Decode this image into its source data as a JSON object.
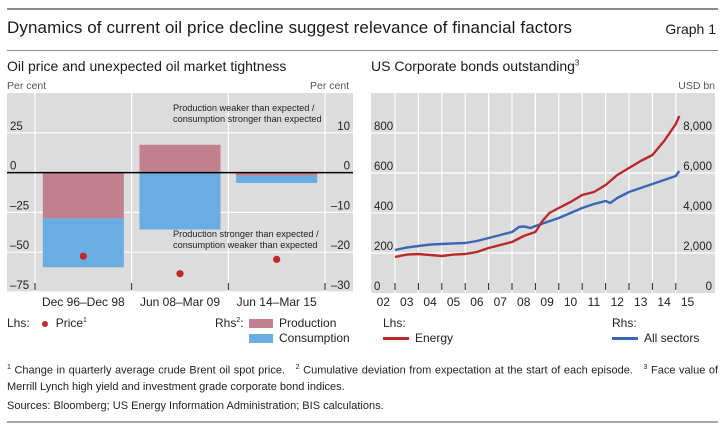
{
  "header": {
    "title": "Dynamics of current oil price decline suggest relevance of financial factors",
    "graph_label": "Graph 1"
  },
  "colors": {
    "plot_bg": "#dcdcdc",
    "grid": "#ffffff",
    "production": "#c27f8f",
    "consumption": "#6aade2",
    "price_dot": "#c0282a",
    "energy": "#b82a2a",
    "all_sectors": "#3a66b4",
    "zero_line": "#000000"
  },
  "chart_data": [
    {
      "type": "bar",
      "title": "Oil price and unexpected oil market tightness",
      "ylabel_left": "Per cent",
      "ylabel_right": "Per cent",
      "categories": [
        "Dec 96–Dec 98",
        "Jun 08–Mar 09",
        "Jun 14–Mar 15"
      ],
      "left_axis": {
        "range": [
          -75,
          50
        ],
        "ticks": [
          "25",
          "0",
          "–25",
          "–50",
          "–75"
        ],
        "tick_values": [
          25,
          0,
          -25,
          -50,
          -75
        ]
      },
      "right_axis": {
        "range": [
          -30,
          20
        ],
        "ticks": [
          "10",
          "0",
          "–10",
          "–20",
          "–30"
        ],
        "tick_values": [
          10,
          0,
          -10,
          -20,
          -30
        ]
      },
      "stacked": true,
      "series": [
        {
          "name": "Production",
          "axis": "right",
          "kind": "bar",
          "values": [
            -11.5,
            7.0,
            -0.8
          ]
        },
        {
          "name": "Consumption",
          "axis": "right",
          "kind": "bar",
          "values": [
            -12.3,
            -14.3,
            -1.8
          ]
        },
        {
          "name": "Price",
          "axis": "left",
          "kind": "dot",
          "values": [
            -52.5,
            -63.5,
            -54.5
          ]
        }
      ],
      "annotations": [
        {
          "lines": [
            "Production weaker than expected  /",
            "consumption stronger than expected"
          ],
          "position": "top-right"
        },
        {
          "lines": [
            "Production stronger than expected  /",
            "consumption weaker than expected"
          ],
          "position": "lower-right"
        }
      ],
      "grid": true,
      "legend": {
        "lhs_label": "Lhs:",
        "lhs_items": [
          {
            "label": "Price",
            "sup": "1"
          }
        ],
        "rhs_label": "Rhs",
        "rhs_sup": "2",
        "rhs_items": [
          {
            "label": "Production"
          },
          {
            "label": "Consumption"
          }
        ],
        "placement": "bottom"
      }
    },
    {
      "type": "line",
      "title": "US Corporate bonds outstanding",
      "title_sup": "3",
      "ylabel_right": "USD bn",
      "x_ticks": [
        "02",
        "03",
        "04",
        "05",
        "06",
        "07",
        "08",
        "09",
        "10",
        "11",
        "12",
        "13",
        "14",
        "15"
      ],
      "x_range": [
        2002.0,
        2016.0
      ],
      "left_axis": {
        "range": [
          0,
          1000
        ],
        "ticks": [
          "800",
          "600",
          "400",
          "200",
          "0"
        ],
        "tick_values": [
          800,
          600,
          400,
          200,
          0
        ]
      },
      "right_axis": {
        "range": [
          0,
          10000
        ],
        "ticks": [
          "8,000",
          "6,000",
          "4,000",
          "2,000",
          "0"
        ],
        "tick_values": [
          8000,
          6000,
          4000,
          2000,
          0
        ]
      },
      "grid": true,
      "series": [
        {
          "name": "Energy",
          "axis": "left",
          "x": [
            2003.0,
            2003.5,
            2004.0,
            2004.5,
            2005.0,
            2005.5,
            2006.0,
            2006.5,
            2007.0,
            2007.5,
            2008.0,
            2008.5,
            2009.0,
            2009.3,
            2009.6,
            2010.0,
            2010.5,
            2011.0,
            2011.5,
            2012.0,
            2012.5,
            2013.0,
            2013.5,
            2014.0,
            2014.5,
            2015.0,
            2015.15
          ],
          "values": [
            180,
            192,
            195,
            190,
            185,
            192,
            195,
            205,
            225,
            240,
            255,
            285,
            305,
            360,
            400,
            425,
            455,
            490,
            505,
            540,
            590,
            625,
            660,
            690,
            760,
            845,
            885
          ]
        },
        {
          "name": "All sectors",
          "axis": "right",
          "x": [
            2003.0,
            2003.5,
            2004.0,
            2004.5,
            2005.0,
            2005.5,
            2006.0,
            2006.5,
            2007.0,
            2007.5,
            2008.0,
            2008.3,
            2008.5,
            2008.8,
            2009.0,
            2009.5,
            2010.0,
            2010.5,
            2011.0,
            2011.5,
            2012.0,
            2012.2,
            2012.5,
            2013.0,
            2013.5,
            2014.0,
            2014.5,
            2015.0,
            2015.15
          ],
          "values": [
            2150,
            2270,
            2350,
            2420,
            2450,
            2480,
            2500,
            2600,
            2750,
            2900,
            3050,
            3300,
            3330,
            3250,
            3350,
            3550,
            3750,
            4000,
            4250,
            4450,
            4600,
            4500,
            4750,
            5050,
            5250,
            5450,
            5650,
            5850,
            6100
          ]
        }
      ],
      "legend": {
        "lhs_label": "Lhs:",
        "lhs_items": [
          {
            "label": "Energy"
          }
        ],
        "rhs_label": "Rhs:",
        "rhs_items": [
          {
            "label": "All sectors"
          }
        ],
        "placement": "bottom"
      }
    }
  ],
  "footnotes": {
    "n1_sup": "1",
    "n1": "Change in quarterly average crude Brent oil spot price.",
    "n2_sup": "2",
    "n2": "Cumulative deviation from expectation at the start of each episode.",
    "n3_sup": "3",
    "n3_a": "Face",
    "n3_b": "value of Merrill Lynch high yield and investment grade corporate bond indices.",
    "sources": "Sources: Bloomberg; US Energy Information Administration; BIS calculations."
  }
}
